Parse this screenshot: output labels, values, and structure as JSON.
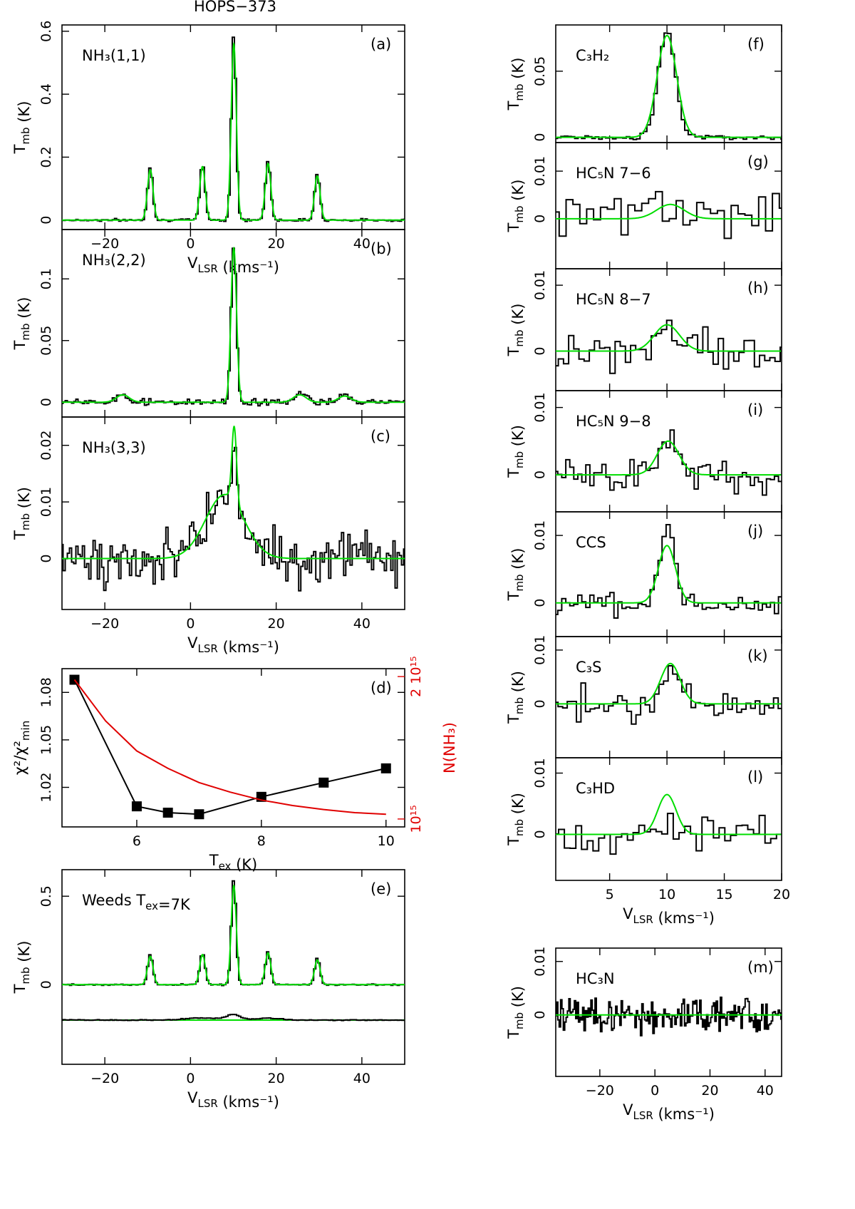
{
  "figure": {
    "title": "HOPS−373",
    "colors": {
      "observed": "#000000",
      "model": "#00dd00",
      "column_density": "#e00000"
    }
  },
  "chart_data": [
    {
      "panel": "a",
      "type": "line",
      "label": "(a)",
      "species": "NH₃(1,1)",
      "xlabel": "V_LSR (kms⁻¹)",
      "ylabel": "T_mb (K)",
      "xlim": [
        -30,
        50
      ],
      "ylim": [
        -0.03,
        0.62
      ],
      "xticks": [
        -20,
        0,
        20,
        40
      ],
      "yticks": [
        0,
        0.2,
        0.4,
        0.6
      ],
      "ytick_labels": [
        "0",
        "0.2",
        "0.4",
        "0.6"
      ],
      "peaks": [
        {
          "x": -9.4,
          "y": 0.17,
          "w": 0.6
        },
        {
          "x": 2.8,
          "y": 0.18,
          "w": 0.6
        },
        {
          "x": 10.1,
          "y": 0.59,
          "w": 0.55
        },
        {
          "x": 18.1,
          "y": 0.19,
          "w": 0.6
        },
        {
          "x": 29.6,
          "y": 0.15,
          "w": 0.6
        }
      ],
      "model_peaks": [
        {
          "x": -9.4,
          "y": 0.16,
          "w": 0.65
        },
        {
          "x": 2.8,
          "y": 0.17,
          "w": 0.65
        },
        {
          "x": 10.1,
          "y": 0.56,
          "w": 0.6
        },
        {
          "x": 18.1,
          "y": 0.18,
          "w": 0.65
        },
        {
          "x": 29.6,
          "y": 0.14,
          "w": 0.65
        }
      ],
      "noise": 0.004,
      "step": 0.5
    },
    {
      "panel": "b",
      "type": "line",
      "label": "(b)",
      "species": "NH₃(2,2)",
      "ylabel": "T_mb (K)",
      "xlim": [
        -30,
        50
      ],
      "ylim": [
        -0.012,
        0.14
      ],
      "yticks": [
        0,
        0.05,
        0.1
      ],
      "ytick_labels": [
        "0",
        "0.05",
        "0.1"
      ],
      "peaks": [
        {
          "x": 10.1,
          "y": 0.128,
          "w": 0.6
        },
        {
          "x": -16,
          "y": 0.007,
          "w": 1.2
        },
        {
          "x": 26,
          "y": 0.007,
          "w": 1.2
        },
        {
          "x": 36,
          "y": 0.006,
          "w": 1.2
        }
      ],
      "model_peaks": [
        {
          "x": 10.1,
          "y": 0.125,
          "w": 0.65
        },
        {
          "x": -15.8,
          "y": 0.006,
          "w": 1.5
        },
        {
          "x": 25.5,
          "y": 0.006,
          "w": 1.5
        },
        {
          "x": 36,
          "y": 0.005,
          "w": 1.5
        }
      ],
      "noise": 0.0025,
      "step": 0.5
    },
    {
      "panel": "c",
      "type": "line",
      "label": "(c)",
      "species": "NH₃(3,3)",
      "xlabel": "V_LSR (kms⁻¹)",
      "ylabel": "T_mb (K)",
      "xlim": [
        -30,
        50
      ],
      "ylim": [
        -0.009,
        0.025
      ],
      "xticks": [
        -20,
        0,
        20,
        40
      ],
      "yticks": [
        0,
        0.01,
        0.02
      ],
      "ytick_labels": [
        "0",
        "0.01",
        "0.02"
      ],
      "peaks": [
        {
          "x": 10.2,
          "y": 0.012,
          "w": 0.6
        },
        {
          "x": 8,
          "y": 0.01,
          "w": 4.5
        }
      ],
      "model_peaks": [
        {
          "x": 10.2,
          "y": 0.0133,
          "w": 0.55
        },
        {
          "x": 8,
          "y": 0.0113,
          "w": 4.5
        }
      ],
      "noise": 0.0045,
      "step": 0.5,
      "model_threshold": 0.013
    },
    {
      "panel": "d",
      "type": "scatter",
      "label": "(d)",
      "xlabel": "T_ex (K)",
      "ylabel": "χ²/χ²_min",
      "ylabel_right": "N(NH₃)",
      "xlim": [
        4.8,
        10.3
      ],
      "ylim": [
        0.995,
        1.095
      ],
      "xticks": [
        6,
        8,
        10
      ],
      "yticks": [
        1.02,
        1.05,
        1.08
      ],
      "ytick_labels": [
        "1.02",
        "1.05",
        "1.08"
      ],
      "right_ticks": [
        {
          "value": 1.0,
          "label": "10¹⁵"
        },
        {
          "value": 1.09,
          "label": "2 10¹⁵"
        }
      ],
      "x": [
        5,
        6,
        6.5,
        7,
        8,
        9,
        10
      ],
      "y": [
        1.088,
        1.008,
        1.004,
        1.003,
        1.014,
        1.023,
        1.032
      ],
      "red_curve": {
        "x": [
          5,
          5.5,
          6,
          6.5,
          7,
          7.5,
          8,
          8.5,
          9,
          9.5,
          10
        ],
        "y": [
          1.088,
          1.062,
          1.043,
          1.032,
          1.023,
          1.017,
          1.012,
          1.0085,
          1.006,
          1.004,
          1.003
        ]
      }
    },
    {
      "panel": "e",
      "type": "line",
      "label": "(e)",
      "species": "Weeds T_ex=7K",
      "xlabel": "V_LSR (kms⁻¹)",
      "ylabel": "T_mb (K)",
      "xlim": [
        -30,
        50
      ],
      "ylim": [
        -0.45,
        0.65
      ],
      "xticks": [
        -20,
        0,
        20,
        40
      ],
      "yticks": [
        0,
        0.5
      ],
      "ytick_labels": [
        "0",
        "0.5"
      ],
      "peaks": [
        {
          "x": -9.4,
          "y": 0.17,
          "w": 0.6
        },
        {
          "x": 2.8,
          "y": 0.18,
          "w": 0.6
        },
        {
          "x": 10.1,
          "y": 0.6,
          "w": 0.55
        },
        {
          "x": 18.1,
          "y": 0.19,
          "w": 0.6
        },
        {
          "x": 29.6,
          "y": 0.15,
          "w": 0.6
        }
      ],
      "model_peaks": [
        {
          "x": -9.4,
          "y": 0.16,
          "w": 0.65
        },
        {
          "x": 2.8,
          "y": 0.17,
          "w": 0.65
        },
        {
          "x": 10.1,
          "y": 0.56,
          "w": 0.6
        },
        {
          "x": 18.1,
          "y": 0.18,
          "w": 0.65
        },
        {
          "x": 29.6,
          "y": 0.14,
          "w": 0.65
        }
      ],
      "noise": 0.004,
      "step": 0.5,
      "residual": {
        "offset": -0.2,
        "peaks": [
          {
            "x": 10.1,
            "y": 0.03,
            "w": 1.5
          },
          {
            "x": 3,
            "y": 0.012,
            "w": 4
          },
          {
            "x": 18,
            "y": 0.01,
            "w": 3
          }
        ]
      }
    },
    {
      "panel": "f",
      "type": "line",
      "label": "(f)",
      "species": "C₃H₂",
      "ylabel": "T_mb (K)",
      "xlim": [
        0.3,
        20
      ],
      "ylim": [
        -0.004,
        0.085
      ],
      "yticks": [
        0,
        0.05
      ],
      "ytick_labels": [
        "0",
        "0.05"
      ],
      "peaks": [
        {
          "x": 10.0,
          "y": 0.08,
          "w": 0.75
        }
      ],
      "model_peaks": [
        {
          "x": 10.0,
          "y": 0.077,
          "w": 0.85
        }
      ],
      "noise": 0.0015,
      "step": 0.3
    },
    {
      "panel": "g",
      "type": "line",
      "label": "(g)",
      "species": "HC₅N 7−6",
      "ylabel": "T_mb (K)",
      "xlim": [
        0.3,
        20
      ],
      "ylim": [
        -0.0105,
        0.016
      ],
      "yticks": [
        0,
        0.01
      ],
      "ytick_labels": [
        "0",
        "0.01"
      ],
      "peaks": [
        {
          "x": 10.3,
          "y": 0.002,
          "w": 1.2
        }
      ],
      "model_peaks": [
        {
          "x": 10.3,
          "y": 0.003,
          "w": 1.2
        }
      ],
      "noise": 0.0045,
      "step": 0.6
    },
    {
      "panel": "h",
      "type": "line",
      "label": "(h)",
      "species": "HC₅N 8−7",
      "ylabel": "T_mb (K)",
      "xlim": [
        0.3,
        20
      ],
      "ylim": [
        -0.006,
        0.0125
      ],
      "yticks": [
        0,
        0.01
      ],
      "ytick_labels": [
        "0",
        "0.01"
      ],
      "peaks": [
        {
          "x": 10.0,
          "y": 0.003,
          "w": 1.1
        }
      ],
      "model_peaks": [
        {
          "x": 10.0,
          "y": 0.004,
          "w": 1.1
        }
      ],
      "noise": 0.003,
      "step": 0.45
    },
    {
      "panel": "i",
      "type": "line",
      "label": "(i)",
      "species": "HC₅N 9−8",
      "ylabel": "T_mb (K)",
      "xlim": [
        0.3,
        20
      ],
      "ylim": [
        -0.0055,
        0.0125
      ],
      "yticks": [
        0,
        0.01
      ],
      "ytick_labels": [
        "0",
        "0.01"
      ],
      "peaks": [
        {
          "x": 10.2,
          "y": 0.005,
          "w": 0.8
        }
      ],
      "model_peaks": [
        {
          "x": 10.1,
          "y": 0.005,
          "w": 0.95
        }
      ],
      "noise": 0.0025,
      "step": 0.35
    },
    {
      "panel": "j",
      "type": "line",
      "label": "(j)",
      "species": "CCS",
      "ylabel": "T_mb (K)",
      "xlim": [
        0.3,
        20
      ],
      "ylim": [
        -0.005,
        0.0135
      ],
      "yticks": [
        0,
        0.01
      ],
      "ytick_labels": [
        "0",
        "0.01"
      ],
      "peaks": [
        {
          "x": 10.0,
          "y": 0.009,
          "w": 0.65
        }
      ],
      "model_peaks": [
        {
          "x": 10.0,
          "y": 0.0085,
          "w": 0.75
        }
      ],
      "noise": 0.002,
      "step": 0.35
    },
    {
      "panel": "k",
      "type": "line",
      "label": "(k)",
      "species": "C₃S",
      "ylabel": "T_mb (K)",
      "xlim": [
        0.3,
        20
      ],
      "ylim": [
        -0.01,
        0.0125
      ],
      "yticks": [
        0,
        0.01
      ],
      "ytick_labels": [
        "0",
        "0.01"
      ],
      "peaks": [
        {
          "x": 10.3,
          "y": 0.006,
          "w": 0.8
        }
      ],
      "model_peaks": [
        {
          "x": 10.3,
          "y": 0.0075,
          "w": 0.85
        }
      ],
      "noise": 0.0035,
      "step": 0.4
    },
    {
      "panel": "l",
      "type": "line",
      "label": "(l)",
      "species": "C₃HD",
      "xlabel": "V_LSR (kms⁻¹)",
      "ylabel": "T_mb (K)",
      "xlim": [
        0.3,
        20
      ],
      "ylim": [
        -0.0075,
        0.0125
      ],
      "xticks": [
        5,
        10,
        15,
        20
      ],
      "yticks": [
        0,
        0.01
      ],
      "ytick_labels": [
        "0",
        "0.01"
      ],
      "peaks": [
        {
          "x": 10.0,
          "y": 0.0,
          "w": 0.8
        }
      ],
      "model_peaks": [
        {
          "x": 10.0,
          "y": 0.0065,
          "w": 0.8
        }
      ],
      "noise": 0.003,
      "step": 0.5
    },
    {
      "panel": "m",
      "type": "line",
      "label": "(m)",
      "species": "HC₃N",
      "xlabel": "V_LSR (kms⁻¹)",
      "ylabel": "T_mb (K)",
      "xlim": [
        -36,
        46
      ],
      "ylim": [
        -0.0115,
        0.0125
      ],
      "xticks": [
        -20,
        0,
        20,
        40
      ],
      "yticks": [
        0,
        0.01
      ],
      "ytick_labels": [
        "0",
        "0.01"
      ],
      "peaks": [],
      "model_peaks": [],
      "noise": 0.0035,
      "step": 0.5
    }
  ]
}
